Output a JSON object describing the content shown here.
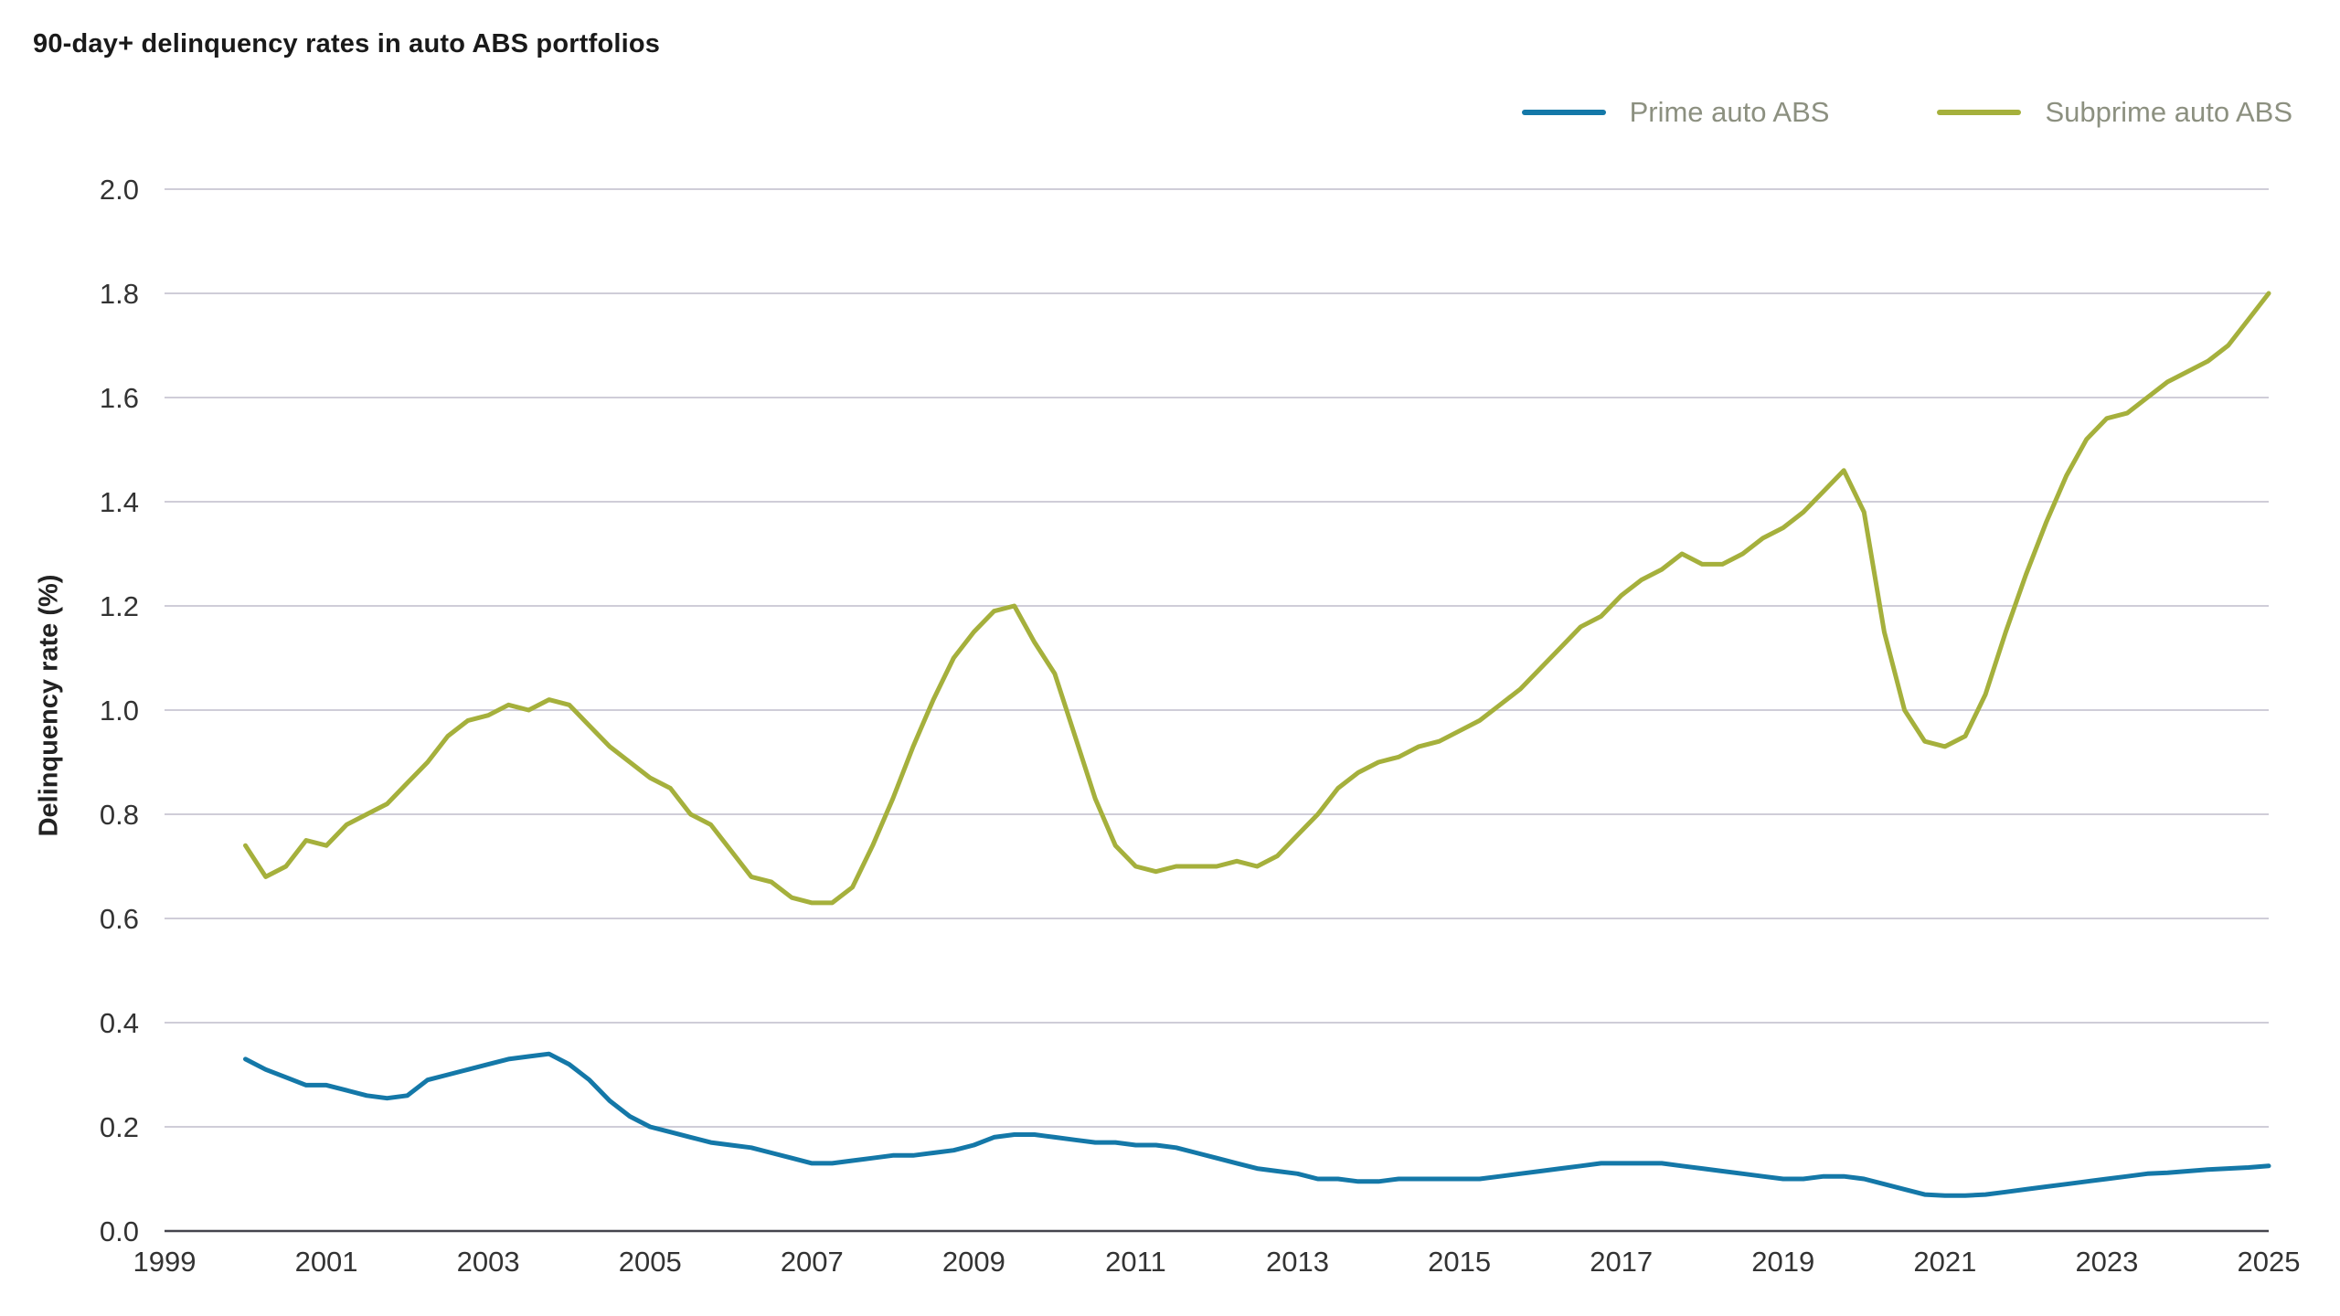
{
  "page": {
    "background": "#ffffff"
  },
  "chart_data": {
    "type": "line",
    "title": "90-day+ delinquency rates in auto ABS portfolios",
    "xlabel": "",
    "ylabel": "Delinquency rate (%)",
    "xlim": [
      1999,
      2025
    ],
    "ylim": [
      0.0,
      2.0
    ],
    "xticks": [
      1999,
      2001,
      2003,
      2005,
      2007,
      2009,
      2011,
      2013,
      2015,
      2017,
      2019,
      2021,
      2023,
      2025
    ],
    "yticks": [
      0.0,
      0.2,
      0.4,
      0.6,
      0.8,
      1.0,
      1.2,
      1.4,
      1.6,
      1.8,
      2.0
    ],
    "grid": true,
    "legend_position": "top-right",
    "colors": {
      "prime": "#1478a8",
      "subprime": "#a5b03c",
      "gridline": "#c8c6d2",
      "axis": "#45454d",
      "tick_text": "#333333",
      "legend_text": "#8c9080"
    },
    "x": [
      2000,
      2000.25,
      2000.5,
      2000.75,
      2001,
      2001.25,
      2001.5,
      2001.75,
      2002,
      2002.25,
      2002.5,
      2002.75,
      2003,
      2003.25,
      2003.5,
      2003.75,
      2004,
      2004.25,
      2004.5,
      2004.75,
      2005,
      2005.25,
      2005.5,
      2005.75,
      2006,
      2006.25,
      2006.5,
      2006.75,
      2007,
      2007.25,
      2007.5,
      2007.75,
      2008,
      2008.25,
      2008.5,
      2008.75,
      2009,
      2009.25,
      2009.5,
      2009.75,
      2010,
      2010.25,
      2010.5,
      2010.75,
      2011,
      2011.25,
      2011.5,
      2011.75,
      2012,
      2012.25,
      2012.5,
      2012.75,
      2013,
      2013.25,
      2013.5,
      2013.75,
      2014,
      2014.25,
      2014.5,
      2014.75,
      2015,
      2015.25,
      2015.5,
      2015.75,
      2016,
      2016.25,
      2016.5,
      2016.75,
      2017,
      2017.25,
      2017.5,
      2017.75,
      2018,
      2018.25,
      2018.5,
      2018.75,
      2019,
      2019.25,
      2019.5,
      2019.75,
      2020,
      2020.25,
      2020.5,
      2020.75,
      2021,
      2021.25,
      2021.5,
      2021.75,
      2022,
      2022.25,
      2022.5,
      2022.75,
      2023,
      2023.25,
      2023.5,
      2023.75,
      2024,
      2024.25,
      2024.5,
      2024.75,
      2025
    ],
    "series": [
      {
        "name": "Prime auto ABS",
        "color": "#1478a8",
        "values": [
          0.33,
          0.31,
          0.295,
          0.28,
          0.28,
          0.27,
          0.26,
          0.255,
          0.26,
          0.29,
          0.3,
          0.31,
          0.32,
          0.33,
          0.335,
          0.34,
          0.32,
          0.29,
          0.25,
          0.22,
          0.2,
          0.19,
          0.18,
          0.17,
          0.165,
          0.16,
          0.15,
          0.14,
          0.13,
          0.13,
          0.135,
          0.14,
          0.145,
          0.145,
          0.15,
          0.155,
          0.165,
          0.18,
          0.185,
          0.185,
          0.18,
          0.175,
          0.17,
          0.17,
          0.165,
          0.165,
          0.16,
          0.15,
          0.14,
          0.13,
          0.12,
          0.115,
          0.11,
          0.1,
          0.1,
          0.095,
          0.095,
          0.1,
          0.1,
          0.1,
          0.1,
          0.1,
          0.105,
          0.11,
          0.115,
          0.12,
          0.125,
          0.13,
          0.13,
          0.13,
          0.13,
          0.125,
          0.12,
          0.115,
          0.11,
          0.105,
          0.1,
          0.1,
          0.105,
          0.105,
          0.1,
          0.09,
          0.08,
          0.07,
          0.068,
          0.068,
          0.07,
          0.075,
          0.08,
          0.085,
          0.09,
          0.095,
          0.1,
          0.105,
          0.11,
          0.112,
          0.115,
          0.118,
          0.12,
          0.122,
          0.125
        ]
      },
      {
        "name": "Subprime auto ABS",
        "color": "#a5b03c",
        "values": [
          0.74,
          0.68,
          0.7,
          0.75,
          0.74,
          0.78,
          0.8,
          0.82,
          0.86,
          0.9,
          0.95,
          0.98,
          0.99,
          1.01,
          1.0,
          1.02,
          1.01,
          0.97,
          0.93,
          0.9,
          0.87,
          0.85,
          0.8,
          0.78,
          0.73,
          0.68,
          0.67,
          0.64,
          0.63,
          0.63,
          0.66,
          0.74,
          0.83,
          0.93,
          1.02,
          1.1,
          1.15,
          1.19,
          1.2,
          1.13,
          1.07,
          0.95,
          0.83,
          0.74,
          0.7,
          0.69,
          0.7,
          0.7,
          0.7,
          0.71,
          0.7,
          0.72,
          0.76,
          0.8,
          0.85,
          0.88,
          0.9,
          0.91,
          0.93,
          0.94,
          0.96,
          0.98,
          1.01,
          1.04,
          1.08,
          1.12,
          1.16,
          1.18,
          1.22,
          1.25,
          1.27,
          1.3,
          1.28,
          1.28,
          1.3,
          1.33,
          1.35,
          1.38,
          1.42,
          1.46,
          1.38,
          1.15,
          1.0,
          0.94,
          0.93,
          0.95,
          1.03,
          1.15,
          1.26,
          1.36,
          1.45,
          1.52,
          1.56,
          1.57,
          1.6,
          1.63,
          1.65,
          1.67,
          1.7,
          1.75,
          1.8
        ]
      }
    ]
  }
}
